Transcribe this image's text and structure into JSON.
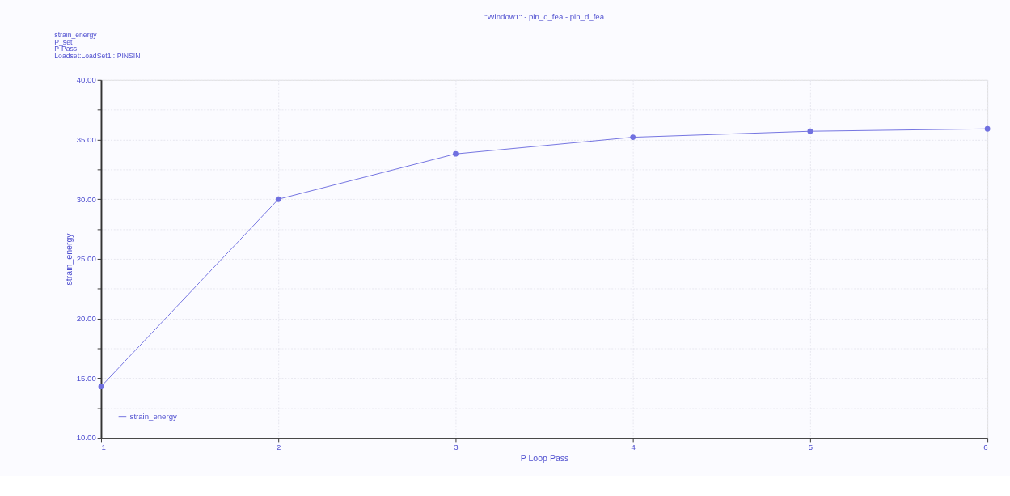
{
  "chart_data": {
    "type": "line",
    "title": "\"Window1\" - pin_d_fea - pin_d_fea",
    "annotations": [
      "strain_energy",
      "P_set",
      "P-Pass",
      "Loadset:LoadSet1 : PINSIN"
    ],
    "xlabel": "P Loop Pass",
    "ylabel": "strain_energy",
    "x": [
      1,
      2,
      3,
      4,
      5,
      6
    ],
    "series": [
      {
        "name": "strain_energy",
        "color": "#7070e0",
        "values": [
          14.3,
          30.0,
          33.8,
          35.2,
          35.7,
          35.9
        ]
      }
    ],
    "xlim": [
      1,
      6
    ],
    "xticks": [
      1,
      2,
      3,
      4,
      5,
      6
    ],
    "ylim": [
      10,
      40
    ],
    "yticks": [
      {
        "value": 10,
        "label": "10.00"
      },
      {
        "value": 12.5,
        "label": null
      },
      {
        "value": 15,
        "label": "15.00"
      },
      {
        "value": 17.5,
        "label": null
      },
      {
        "value": 20,
        "label": "20.00"
      },
      {
        "value": 22.5,
        "label": null
      },
      {
        "value": 25,
        "label": "25.00"
      },
      {
        "value": 27.5,
        "label": null
      },
      {
        "value": 30,
        "label": "30.00"
      },
      {
        "value": 32.5,
        "label": null
      },
      {
        "value": 35,
        "label": "35.00"
      },
      {
        "value": 37.5,
        "label": null
      },
      {
        "value": 40,
        "label": "40.00"
      }
    ],
    "grid": true,
    "legend": "bottom left",
    "marker": "circle",
    "line_style": "solid"
  }
}
